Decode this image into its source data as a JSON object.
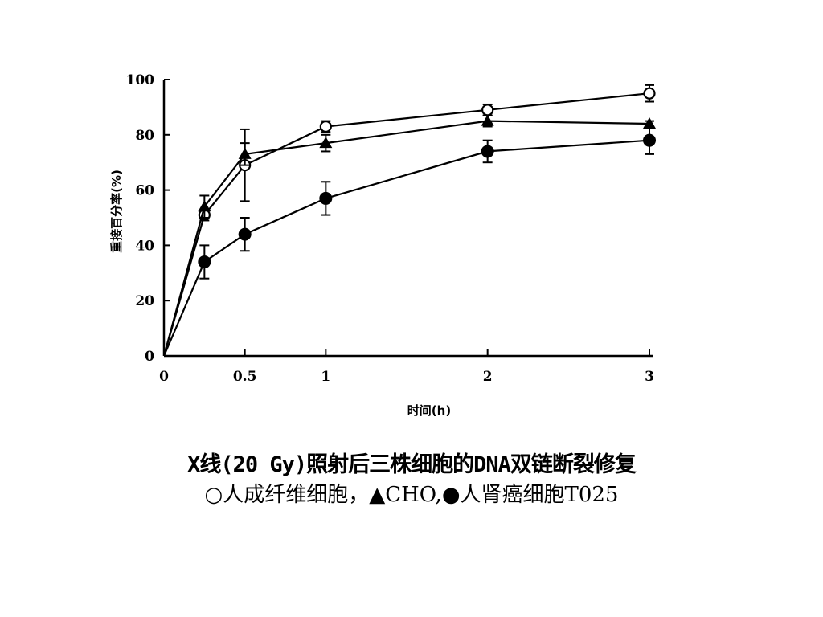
{
  "chart_data": {
    "type": "line",
    "ylabel": "重接百分率(%)",
    "xlabel": "时间(h)",
    "xlim": [
      0,
      3
    ],
    "ylim": [
      0,
      100
    ],
    "xticks": [
      0,
      0.5,
      1,
      2,
      3
    ],
    "xtick_labels": [
      "0",
      "0.5",
      "1",
      "2",
      "3"
    ],
    "yticks": [
      0,
      20,
      40,
      60,
      80,
      100
    ],
    "ytick_labels": [
      "0",
      "20",
      "40",
      "60",
      "80",
      "100"
    ],
    "grid": false,
    "series": [
      {
        "marker": "open-circle",
        "x": [
          0,
          0.25,
          0.5,
          1,
          2,
          3
        ],
        "y": [
          0,
          51,
          69,
          83,
          89,
          95
        ],
        "err": [
          0,
          2,
          13,
          2,
          2,
          3
        ]
      },
      {
        "marker": "filled-triangle",
        "x": [
          0,
          0.25,
          0.5,
          1,
          2,
          3
        ],
        "y": [
          0,
          54,
          73,
          77,
          85,
          84
        ],
        "err": [
          0,
          4,
          4,
          3,
          2,
          1
        ]
      },
      {
        "marker": "filled-circle",
        "x": [
          0,
          0.25,
          0.5,
          1,
          2,
          3
        ],
        "y": [
          0,
          34,
          44,
          57,
          74,
          78
        ],
        "err": [
          0,
          6,
          6,
          6,
          4,
          5
        ]
      }
    ]
  },
  "caption": {
    "title": "X线(20 Gy)照射后三株细胞的DNA双链断裂修复",
    "legend": "○人成纤维细胞，▲CHO,●人肾癌细胞T025"
  }
}
